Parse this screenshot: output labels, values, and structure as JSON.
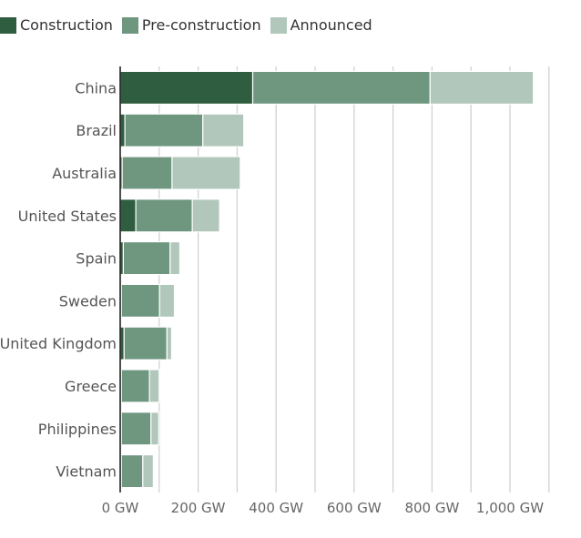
{
  "legend": {
    "items": [
      {
        "label": "Construction",
        "color": "#2f5d3f"
      },
      {
        "label": "Pre-construction",
        "color": "#6f9780"
      },
      {
        "label": "Announced",
        "color": "#b2c7bb"
      }
    ]
  },
  "chart_data": {
    "type": "bar",
    "orientation": "horizontal",
    "stacked": true,
    "categories": [
      "China",
      "Brazil",
      "Australia",
      "United States",
      "Spain",
      "Sweden",
      "United Kingdom",
      "Greece",
      "Philippines",
      "Vietnam"
    ],
    "series": [
      {
        "name": "Construction",
        "color": "#2f5d3f",
        "values": [
          340,
          12,
          5,
          40,
          8,
          3,
          10,
          3,
          3,
          3
        ]
      },
      {
        "name": "Pre-construction",
        "color": "#6f9780",
        "values": [
          455,
          200,
          128,
          145,
          120,
          98,
          110,
          72,
          76,
          55
        ]
      },
      {
        "name": "Announced",
        "color": "#b2c7bb",
        "values": [
          265,
          105,
          175,
          70,
          25,
          38,
          12,
          25,
          20,
          27
        ]
      }
    ],
    "x_ticks": [
      "0 GW",
      "200 GW",
      "400 GW",
      "600 GW",
      "800 GW",
      "1,000 GW"
    ],
    "x_tick_values": [
      0,
      200,
      400,
      600,
      800,
      1000
    ],
    "xlim": [
      0,
      1100
    ],
    "grid": true,
    "legend_position": "top-left"
  }
}
